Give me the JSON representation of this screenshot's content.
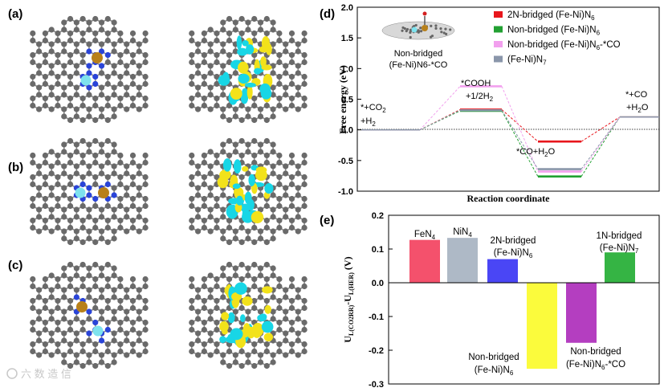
{
  "panels": {
    "a": "(a)",
    "b": "(b)",
    "c": "(c)",
    "d": "(d)",
    "e": "(e)"
  },
  "watermark": "六 数 造 信",
  "chart_data": [
    {
      "type": "line",
      "panel": "(d)",
      "xlabel": "Reaction coordinate",
      "ylabel": "Free energy (eV)",
      "ylim": [
        -1.0,
        2.0
      ],
      "yticks": [
        "2.0",
        "1.5",
        "1.0",
        "0.5",
        "0.0",
        "-0.5",
        "-1.0"
      ],
      "steps": [
        "*+CO2 +H2",
        "*COOH +1/2H2",
        "*CO+H2O",
        "*+CO +H2O"
      ],
      "step_labels": {
        "s0a": "*+CO",
        "s0a_sub": "2",
        "s0b": "+H",
        "s0b_sub": "2",
        "s1a": "*COOH",
        "s1b": "+1/2H",
        "s1b_sub": "2",
        "s2a": "*CO+H",
        "s2a_sub": "2",
        "s2a_tail": "O",
        "s3a": "*+CO",
        "s3b": "+H",
        "s3b_sub": "2",
        "s3b_tail": "O"
      },
      "inset_label": [
        "Non-bridged",
        "(Fe-Ni)N6-*CO"
      ],
      "series": [
        {
          "name": "2N-bridged (Fe-Ni)N6",
          "color": "#e8161c",
          "values": [
            0.0,
            0.33,
            -0.19,
            0.21
          ]
        },
        {
          "name": "Non-bridged (Fe-Ni)N6",
          "color": "#22a032",
          "values": [
            0.0,
            0.31,
            -0.76,
            0.21
          ]
        },
        {
          "name": "Non-bridged (Fe-Ni)N6-*CO",
          "color": "#f2a0ee",
          "values": [
            0.0,
            0.71,
            -0.68,
            0.21
          ]
        },
        {
          "name": "(Fe-Ni)N7",
          "color": "#8a96aa",
          "values": [
            0.0,
            0.32,
            -0.64,
            0.21
          ]
        }
      ],
      "legend": [
        {
          "main": "2N-bridged (Fe-Ni)N",
          "sub": "6",
          "tail": ""
        },
        {
          "main": "Non-bridged (Fe-Ni)N",
          "sub": "6",
          "tail": ""
        },
        {
          "main": "Non-bridged (Fe-Ni)N",
          "sub": "6",
          "tail": "-*CO"
        },
        {
          "main": "(Fe-Ni)N",
          "sub": "7",
          "tail": ""
        }
      ]
    },
    {
      "type": "bar",
      "panel": "(e)",
      "ylabel": "U L(CO2RR) - U L(HER) (V)",
      "ylabel_parts": {
        "a": "U",
        "a_sub": "L(CO2RR)",
        "b": "-U",
        "b_sub": "L(HER)",
        "c": " (V)"
      },
      "ylim": [
        -0.3,
        0.2
      ],
      "yticks": [
        "0.2",
        "0.1",
        "0.0",
        "-0.1",
        "-0.2",
        "-0.3"
      ],
      "categories": [
        "FeN4",
        "NiN4",
        "2N-bridged (Fe-Ni)N6",
        "Non-bridged (Fe-Ni)N6",
        "Non-bridged (Fe-Ni)N6-*CO",
        "1N-bridged (Fe-Ni)N7"
      ],
      "values": [
        0.127,
        0.133,
        0.07,
        -0.255,
        -0.178,
        0.09
      ],
      "colors": [
        "#f4516c",
        "#aeb9c6",
        "#4a46f5",
        "#fbfb3c",
        "#b43ec0",
        "#35b444"
      ],
      "bar_labels": [
        {
          "l1": "FeN",
          "l1_sub": "4",
          "l2": "",
          "l2_sub": "",
          "l2_tail": ""
        },
        {
          "l1": "NiN",
          "l1_sub": "4",
          "l2": "",
          "l2_sub": "",
          "l2_tail": ""
        },
        {
          "l1": "2N-bridged",
          "l1_sub": "",
          "l2": "(Fe-Ni)N",
          "l2_sub": "6",
          "l2_tail": ""
        },
        {
          "l1": "Non-bridged",
          "l1_sub": "",
          "l2": "(Fe-Ni)N",
          "l2_sub": "6",
          "l2_tail": ""
        },
        {
          "l1": "Non-bridged",
          "l1_sub": "",
          "l2": "(Fe-Ni)N",
          "l2_sub": "6",
          "l2_tail": "-*CO"
        },
        {
          "l1": "1N-bridged",
          "l1_sub": "",
          "l2": "(Fe-Ni)N",
          "l2_sub": "7",
          "l2_tail": ""
        }
      ]
    }
  ]
}
